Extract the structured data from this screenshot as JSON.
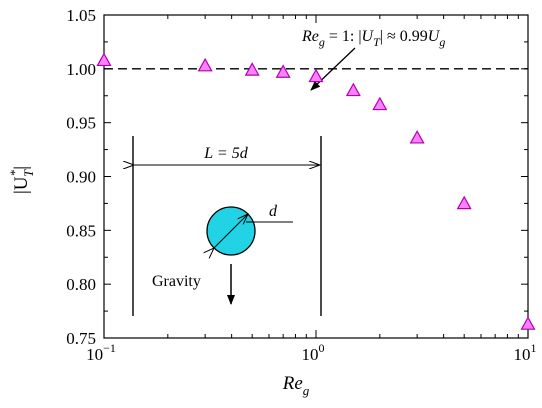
{
  "chart_data": {
    "type": "scatter",
    "x_scale": "log",
    "xlim": [
      0.1,
      10
    ],
    "ylim": [
      0.75,
      1.05
    ],
    "x_tick_labels": [
      {
        "value": 0.1,
        "base": "10",
        "exp": "−1"
      },
      {
        "value": 1,
        "base": "10",
        "exp": "0"
      },
      {
        "value": 10,
        "base": "10",
        "exp": "1"
      }
    ],
    "y_ticks": [
      0.75,
      0.8,
      0.85,
      0.9,
      0.95,
      1.0,
      1.05
    ],
    "y_tick_labels": [
      "0.75",
      "0.80",
      "0.85",
      "0.90",
      "0.95",
      "1.00",
      "1.05"
    ],
    "xlabel": {
      "main": "Re",
      "sub": "g"
    },
    "ylabel": {
      "main": "|U",
      "sup": "*",
      "sub": "T",
      "close": "|"
    },
    "reference_line": {
      "y": 1.0,
      "style": "dashed"
    },
    "marker": {
      "shape": "triangle",
      "fill": "#ff80ff",
      "stroke": "#b000b0"
    },
    "points": [
      {
        "x": 0.1,
        "y": 1.008
      },
      {
        "x": 0.3,
        "y": 1.003
      },
      {
        "x": 0.5,
        "y": 0.999
      },
      {
        "x": 0.7,
        "y": 0.997
      },
      {
        "x": 1.0,
        "y": 0.993
      },
      {
        "x": 1.5,
        "y": 0.98
      },
      {
        "x": 2.0,
        "y": 0.967
      },
      {
        "x": 3.0,
        "y": 0.936
      },
      {
        "x": 5.0,
        "y": 0.875
      },
      {
        "x": 10.0,
        "y": 0.763
      }
    ],
    "annotation": {
      "re": "Re",
      "re_sub": "g",
      "eq": " = 1: |",
      "u": "U",
      "u_sub": "T",
      "mid": "| ≈ 0.99",
      "u2": "U",
      "u2_sub": "g"
    },
    "inset": {
      "length_label": "L = 5d",
      "diameter_label": "d",
      "gravity_label": "Gravity",
      "particle_color": "#22d3e6"
    }
  }
}
